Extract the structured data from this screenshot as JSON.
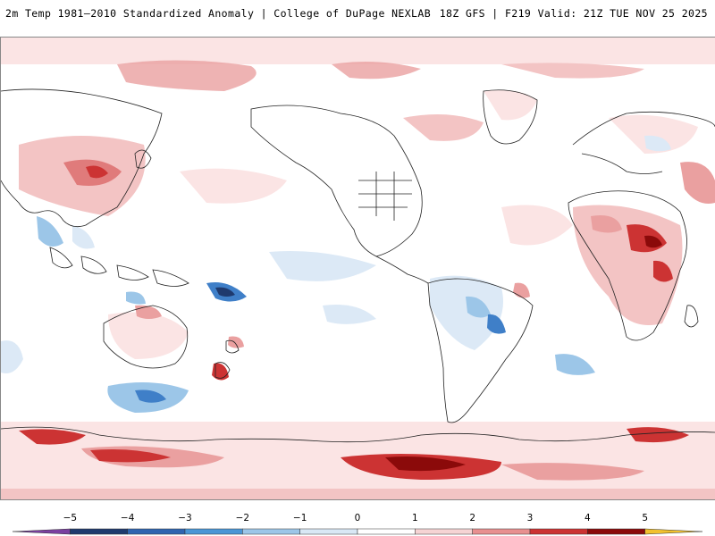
{
  "header": {
    "left_title": "2m Temp 1981–2010 Standardized Anomaly | College of DuPage NEXLAB",
    "right_title": "18Z GFS | F219 Valid: 21Z TUE NOV 25 2025"
  },
  "colorbar": {
    "labels": [
      "−5",
      "−4",
      "−3",
      "−2",
      "−1",
      "0",
      "1",
      "2",
      "3",
      "4",
      "5"
    ],
    "colors": [
      "#7b3fa0",
      "#1f3a6e",
      "#2f64b0",
      "#4a96d6",
      "#9cc6e8",
      "#d9e8f5",
      "#ffffff",
      "#f6d4d4",
      "#e89090",
      "#cc3333",
      "#8b0a0a",
      "#f2c12e"
    ]
  },
  "map": {
    "projection": "global-latlon",
    "colors": {
      "ocean_neutral": "#ffffff",
      "warm_light": "#f8dada",
      "warm_mid": "#eaa0a0",
      "warm_strong": "#cc3333",
      "warm_extreme": "#8b0a0a",
      "cool_light": "#dce9f6",
      "cool_mid": "#9cc6e8",
      "cool_strong": "#3f7fc8",
      "coast": "#222222"
    }
  }
}
